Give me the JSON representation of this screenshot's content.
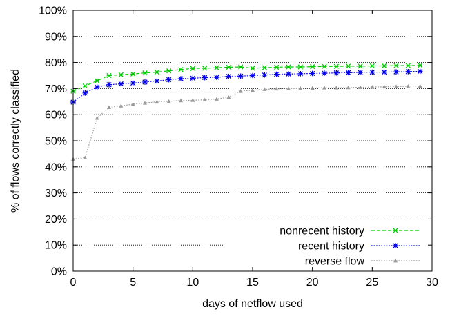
{
  "chart_data": {
    "type": "line",
    "title": "",
    "xlabel": "days of netflow used",
    "ylabel": "% of flows correctly classified",
    "xlim": [
      0,
      30
    ],
    "ylim": [
      0,
      100
    ],
    "xticks": [
      0,
      5,
      10,
      15,
      20,
      25,
      30
    ],
    "yticks": [
      0,
      10,
      20,
      30,
      40,
      50,
      60,
      70,
      80,
      90,
      100
    ],
    "ytick_suffix": "%",
    "grid": "horizontal dotted",
    "legend_position": "bottom-right",
    "x": [
      0,
      1,
      2,
      3,
      4,
      5,
      6,
      7,
      8,
      9,
      10,
      11,
      12,
      13,
      14,
      15,
      16,
      17,
      18,
      19,
      20,
      21,
      22,
      23,
      24,
      25,
      26,
      27,
      28,
      29
    ],
    "series": [
      {
        "name": "nonrecent history",
        "color": "#00cc00",
        "line_style": "dashed",
        "marker": "x-star",
        "values": [
          69,
          71,
          73,
          75,
          75.3,
          75.6,
          76,
          76.3,
          76.8,
          77.3,
          77.7,
          77.8,
          78,
          78.2,
          78.3,
          77.8,
          78,
          78.2,
          78.3,
          78.3,
          78.4,
          78.5,
          78.5,
          78.6,
          78.6,
          78.7,
          78.7,
          78.8,
          78.8,
          78.9
        ]
      },
      {
        "name": "recent history",
        "color": "#0000ee",
        "line_style": "dotted",
        "marker": "star",
        "values": [
          64.8,
          68.3,
          70.6,
          71.5,
          71.8,
          72.1,
          72.5,
          72.9,
          73.4,
          73.8,
          74,
          74.2,
          74.3,
          74.7,
          74.8,
          75,
          75.2,
          75.5,
          75.6,
          75.7,
          75.8,
          75.9,
          76,
          76.1,
          76.2,
          76.3,
          76.3,
          76.4,
          76.5,
          76.6
        ]
      },
      {
        "name": "reverse flow",
        "color": "#999999",
        "line_style": "dotted",
        "marker": "triangle",
        "values": [
          43,
          43.5,
          58.7,
          62.8,
          63.4,
          64,
          64.5,
          64.9,
          65.1,
          65.4,
          65.5,
          65.7,
          66,
          66.7,
          69,
          69.4,
          69.7,
          69.9,
          70,
          70.1,
          70.2,
          70.3,
          70.3,
          70.4,
          70.5,
          70.6,
          70.7,
          70.8,
          70.9,
          71
        ]
      }
    ]
  }
}
